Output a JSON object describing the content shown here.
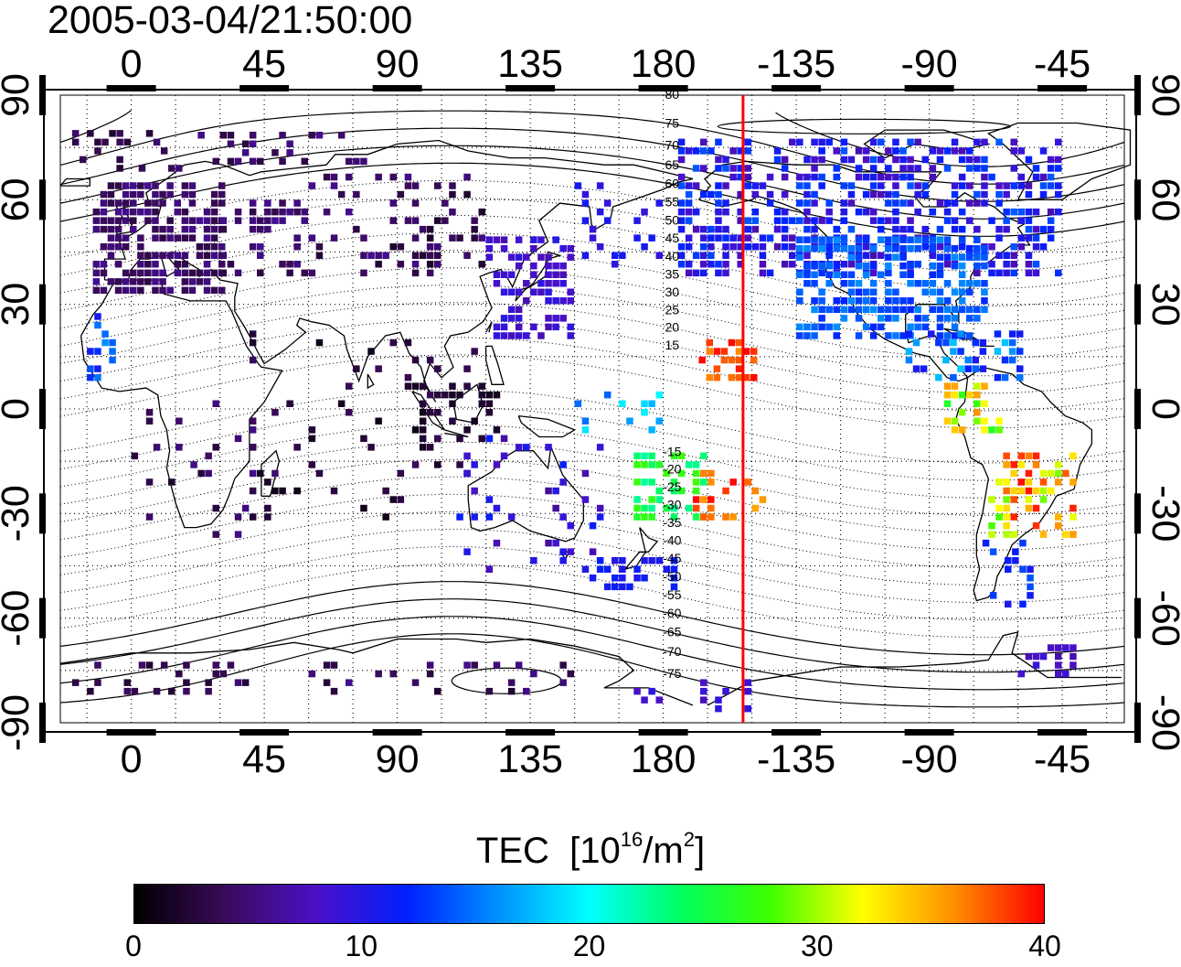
{
  "title": "2005-03-04/21:50:00",
  "map": {
    "lon_ticks": [
      "0",
      "45",
      "90",
      "135",
      "180",
      "-135",
      "-90",
      "-45"
    ],
    "lat_ticks": [
      "90",
      "60",
      "30",
      "0",
      "-30",
      "-60",
      "-90"
    ],
    "lon_values": [
      0,
      45,
      90,
      135,
      180,
      225,
      270,
      315
    ],
    "lat_values": [
      90,
      60,
      30,
      0,
      -30,
      -60,
      -90
    ],
    "lon_range": [
      -24,
      336
    ],
    "lat_range": [
      -90,
      90
    ],
    "terminator_longitude": -153,
    "terminator_color": "#ff0000",
    "geomagnetic_lat_labels_north": [
      "80",
      "75",
      "70",
      "65",
      "60",
      "55",
      "50",
      "45",
      "40",
      "35",
      "30",
      "25",
      "20",
      "15"
    ],
    "geomagnetic_lat_labels_south": [
      "-15",
      "-20",
      "-25",
      "-30",
      "-35",
      "-40",
      "-45",
      "-50",
      "-55",
      "-60",
      "-65",
      "-70",
      "-75"
    ]
  },
  "colorbar": {
    "title": "TEC",
    "unit_prefix": "[10",
    "unit_exp1": "16",
    "unit_mid": "/m",
    "unit_exp2": "2",
    "unit_suffix": "]",
    "min": 0,
    "max": 40,
    "tick_labels": [
      "0",
      "10",
      "20",
      "30",
      "40"
    ],
    "colors": [
      "#000000",
      "#3a0a5a",
      "#4b10c8",
      "#0020ff",
      "#0090ff",
      "#00ffff",
      "#00ff60",
      "#40ff00",
      "#ffff00",
      "#ff9000",
      "#ff0000"
    ]
  }
}
